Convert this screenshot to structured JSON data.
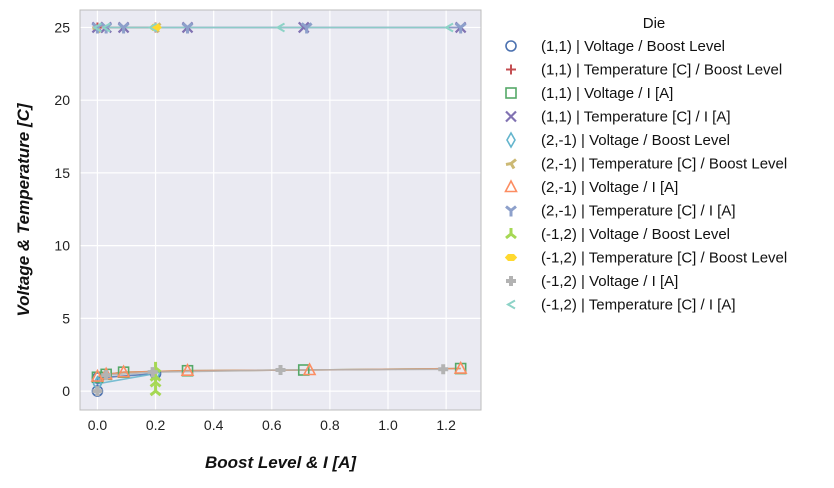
{
  "chart_data": {
    "type": "scatter",
    "xlabel": "Boost Level & I [A]",
    "ylabel": "Voltage & Temperature [C]",
    "xlim": [
      -0.06,
      1.32
    ],
    "ylim": [
      -1.3,
      26.2
    ],
    "xticks": [
      "0.0",
      "0.2",
      "0.4",
      "0.6",
      "0.8",
      "1.0",
      "1.2"
    ],
    "yticks": [
      "0",
      "5",
      "10",
      "15",
      "20",
      "25"
    ],
    "grid": true,
    "legend": {
      "title": "Die",
      "placement": "outside-right"
    },
    "series": [
      {
        "name": "(1,1) | Voltage / Boost Level",
        "marker": "circle",
        "color": "#4c72b0",
        "x": [
          0.0,
          0.0,
          0.2
        ],
        "y": [
          0.0,
          0.9,
          1.2
        ]
      },
      {
        "name": "(1,1) | Temperature [C] / Boost Level",
        "marker": "plus",
        "color": "#c44e52",
        "x": [
          0.0,
          0.2
        ],
        "y": [
          25.0,
          25.0
        ]
      },
      {
        "name": "(1,1) | Voltage / I [A]",
        "marker": "square",
        "color": "#55a868",
        "x": [
          0.0,
          0.03,
          0.09,
          0.31,
          0.71,
          1.25
        ],
        "y": [
          0.95,
          1.15,
          1.3,
          1.4,
          1.45,
          1.55
        ]
      },
      {
        "name": "(1,1) | Temperature [C] / I [A]",
        "marker": "x",
        "color": "#8172b2",
        "x": [
          0.0,
          0.03,
          0.09,
          0.31,
          0.71,
          1.25
        ],
        "y": [
          25.0,
          25.0,
          25.0,
          25.0,
          25.0,
          25.0
        ]
      },
      {
        "name": "(2,-1) | Voltage / Boost Level",
        "marker": "thin_diamond",
        "color": "#64b5cd",
        "x": [
          0.0,
          0.2
        ],
        "y": [
          0.5,
          1.2
        ]
      },
      {
        "name": "(2,-1) | Temperature [C] / Boost Level",
        "marker": "tri_ccw",
        "color": "#ccb974",
        "x": [
          0.0,
          0.2
        ],
        "y": [
          25.0,
          25.0
        ]
      },
      {
        "name": "(2,-1) | Voltage / I [A]",
        "marker": "triangle",
        "color": "#fc8d62",
        "x": [
          0.0,
          0.03,
          0.09,
          0.31,
          0.73,
          1.25
        ],
        "y": [
          1.0,
          1.15,
          1.3,
          1.4,
          1.45,
          1.55
        ]
      },
      {
        "name": "(2,-1) | Temperature [C] / I [A]",
        "marker": "tri_down",
        "color": "#8da0cb",
        "x": [
          0.0,
          0.03,
          0.09,
          0.31,
          0.72,
          1.25
        ],
        "y": [
          25.0,
          25.0,
          25.0,
          25.0,
          25.0,
          25.0
        ]
      },
      {
        "name": "(-1,2) | Voltage / Boost Level",
        "marker": "tri_up",
        "color": "#a6d854",
        "x": [
          0.2,
          0.2,
          0.2,
          0.2
        ],
        "y": [
          0.0,
          0.6,
          1.0,
          1.6
        ]
      },
      {
        "name": "(-1,2) | Temperature [C] / Boost Level",
        "marker": "hexagon",
        "color": "#ffd92f",
        "x": [
          0.2,
          0.2
        ],
        "y": [
          25.0,
          25.0
        ]
      },
      {
        "name": "(-1,2) | Voltage / I [A]",
        "marker": "cross",
        "color": "#b3b3b3",
        "x": [
          0.0,
          0.03,
          0.19,
          0.63,
          1.19
        ],
        "y": [
          0.0,
          1.1,
          1.3,
          1.45,
          1.5
        ]
      },
      {
        "name": "(-1,2) | Temperature [C] / I [A]",
        "marker": "caret_left",
        "color": "#8dd3c7",
        "x": [
          0.0,
          0.03,
          0.19,
          0.63,
          1.21
        ],
        "y": [
          25.0,
          25.0,
          25.0,
          25.0,
          25.0
        ]
      }
    ]
  }
}
